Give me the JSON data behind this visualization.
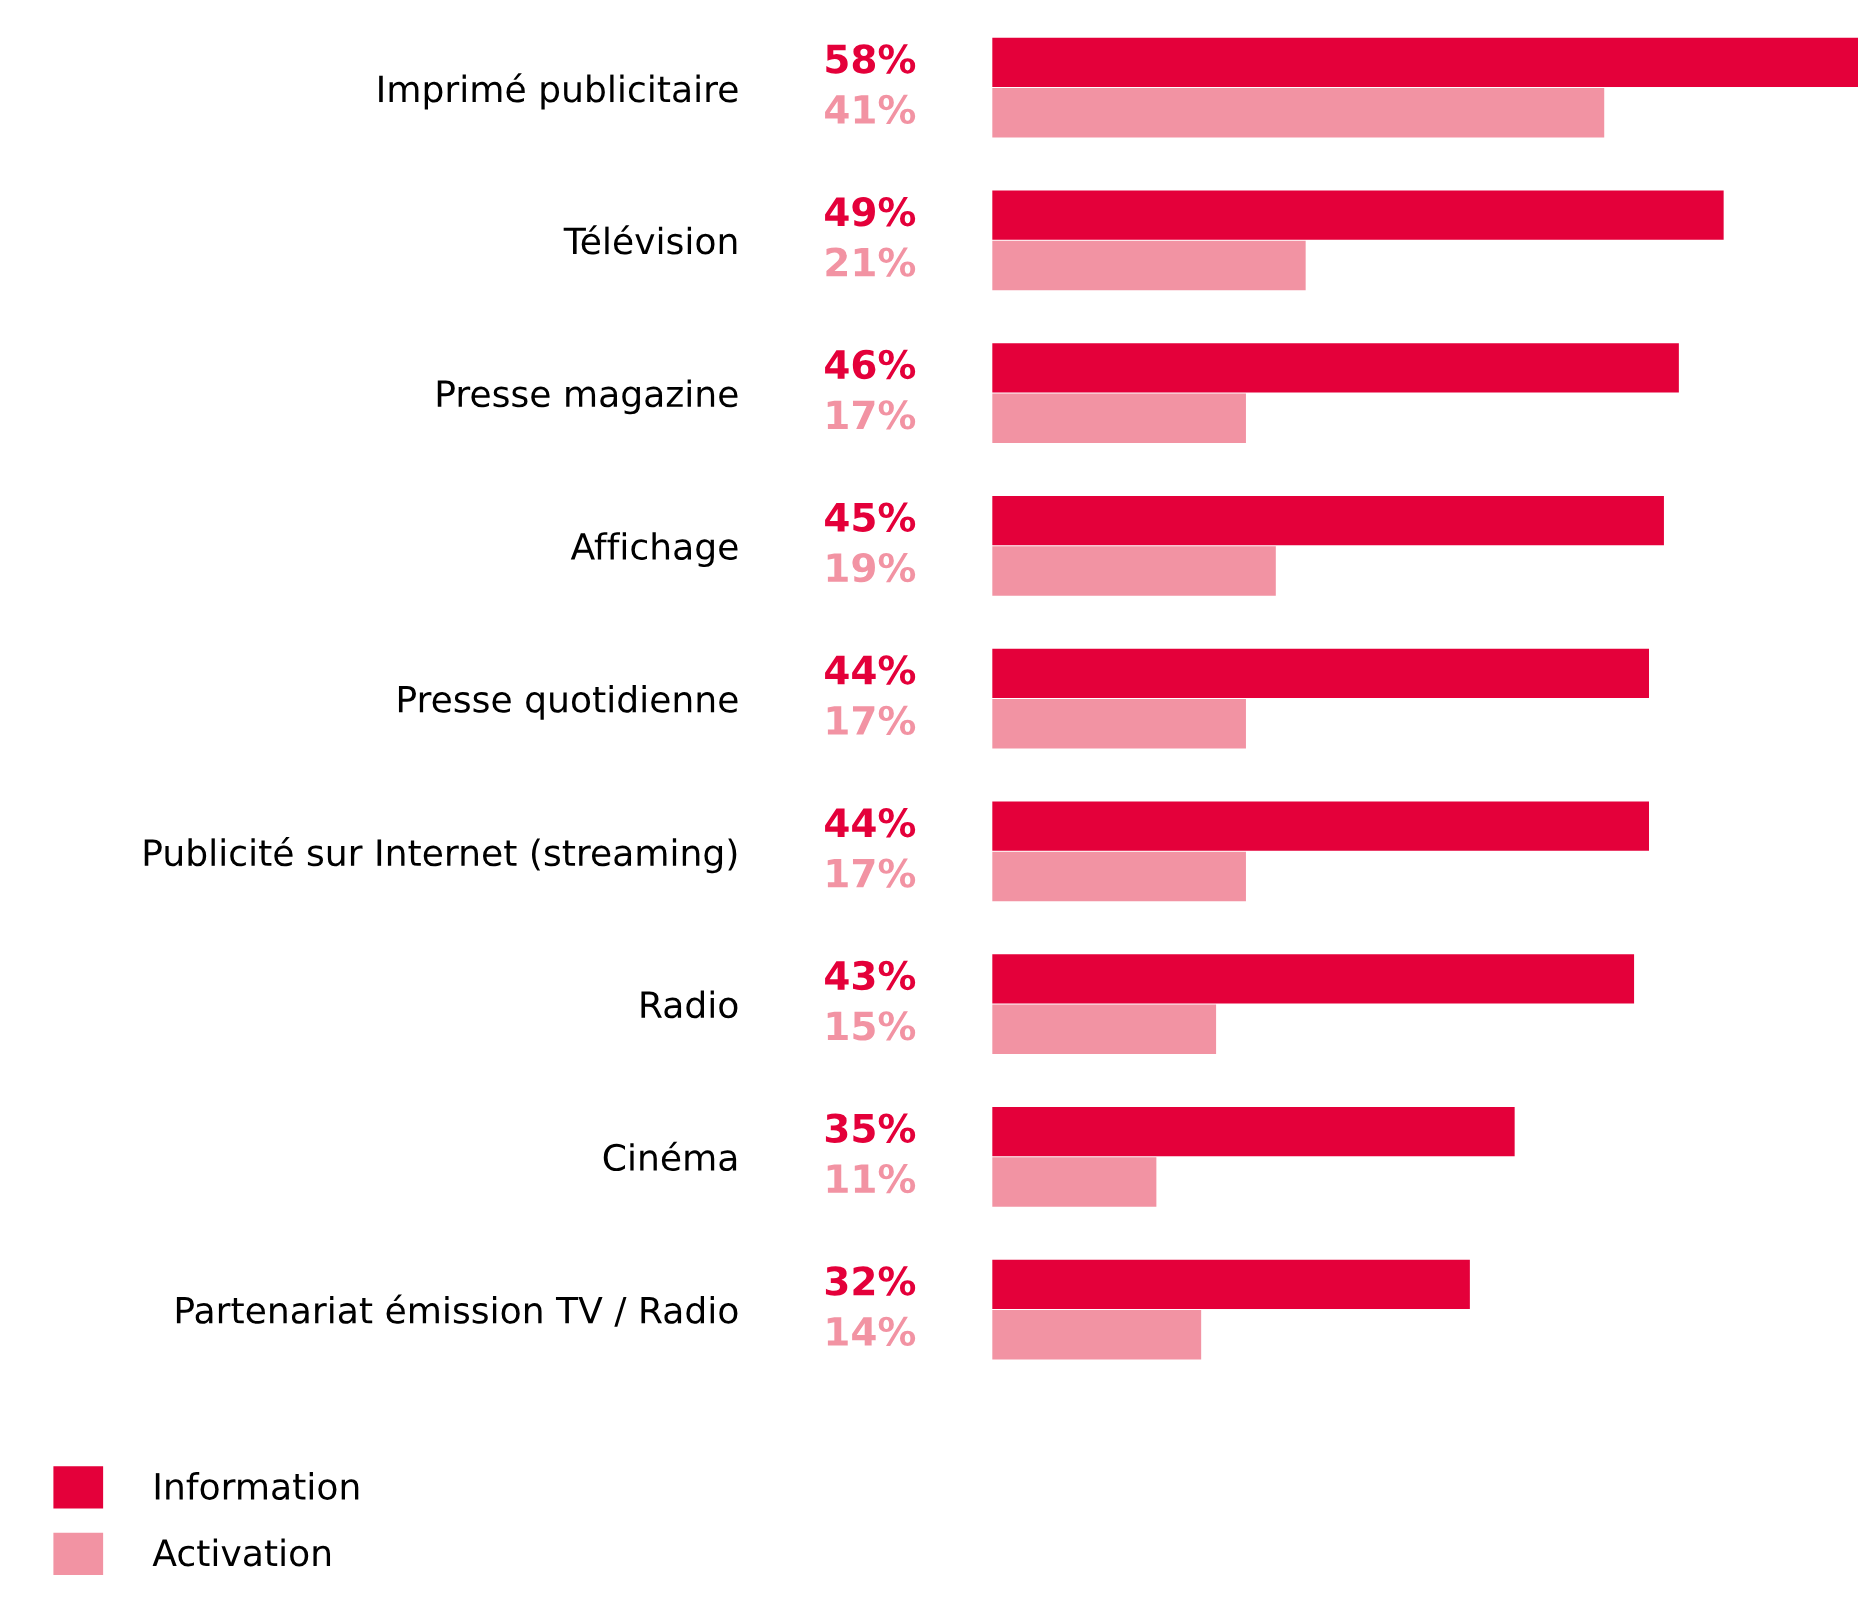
{
  "chart_data": {
    "type": "bar",
    "orientation": "horizontal",
    "categories": [
      "Imprimé publicitaire",
      "Télévision",
      "Presse magazine",
      "Affichage",
      "Presse quotidienne",
      "Publicité sur Internet (streaming)",
      "Radio",
      "Cinéma",
      "Partenariat émission TV / Radio"
    ],
    "series": [
      {
        "name": "Information",
        "color": "#e4003a",
        "values": [
          58,
          49,
          46,
          45,
          44,
          44,
          43,
          35,
          32
        ],
        "value_labels": [
          "58%",
          "49%",
          "46%",
          "45%",
          "44%",
          "44%",
          "43%",
          "35%",
          "32%"
        ]
      },
      {
        "name": "Activation",
        "color": "#f293a3",
        "values": [
          41,
          21,
          17,
          19,
          17,
          17,
          15,
          11,
          14
        ],
        "value_labels": [
          "41%",
          "21%",
          "17%",
          "19%",
          "17%",
          "17%",
          "15%",
          "11%",
          "14%"
        ]
      }
    ],
    "legend": "bottom left",
    "grid": false
  }
}
